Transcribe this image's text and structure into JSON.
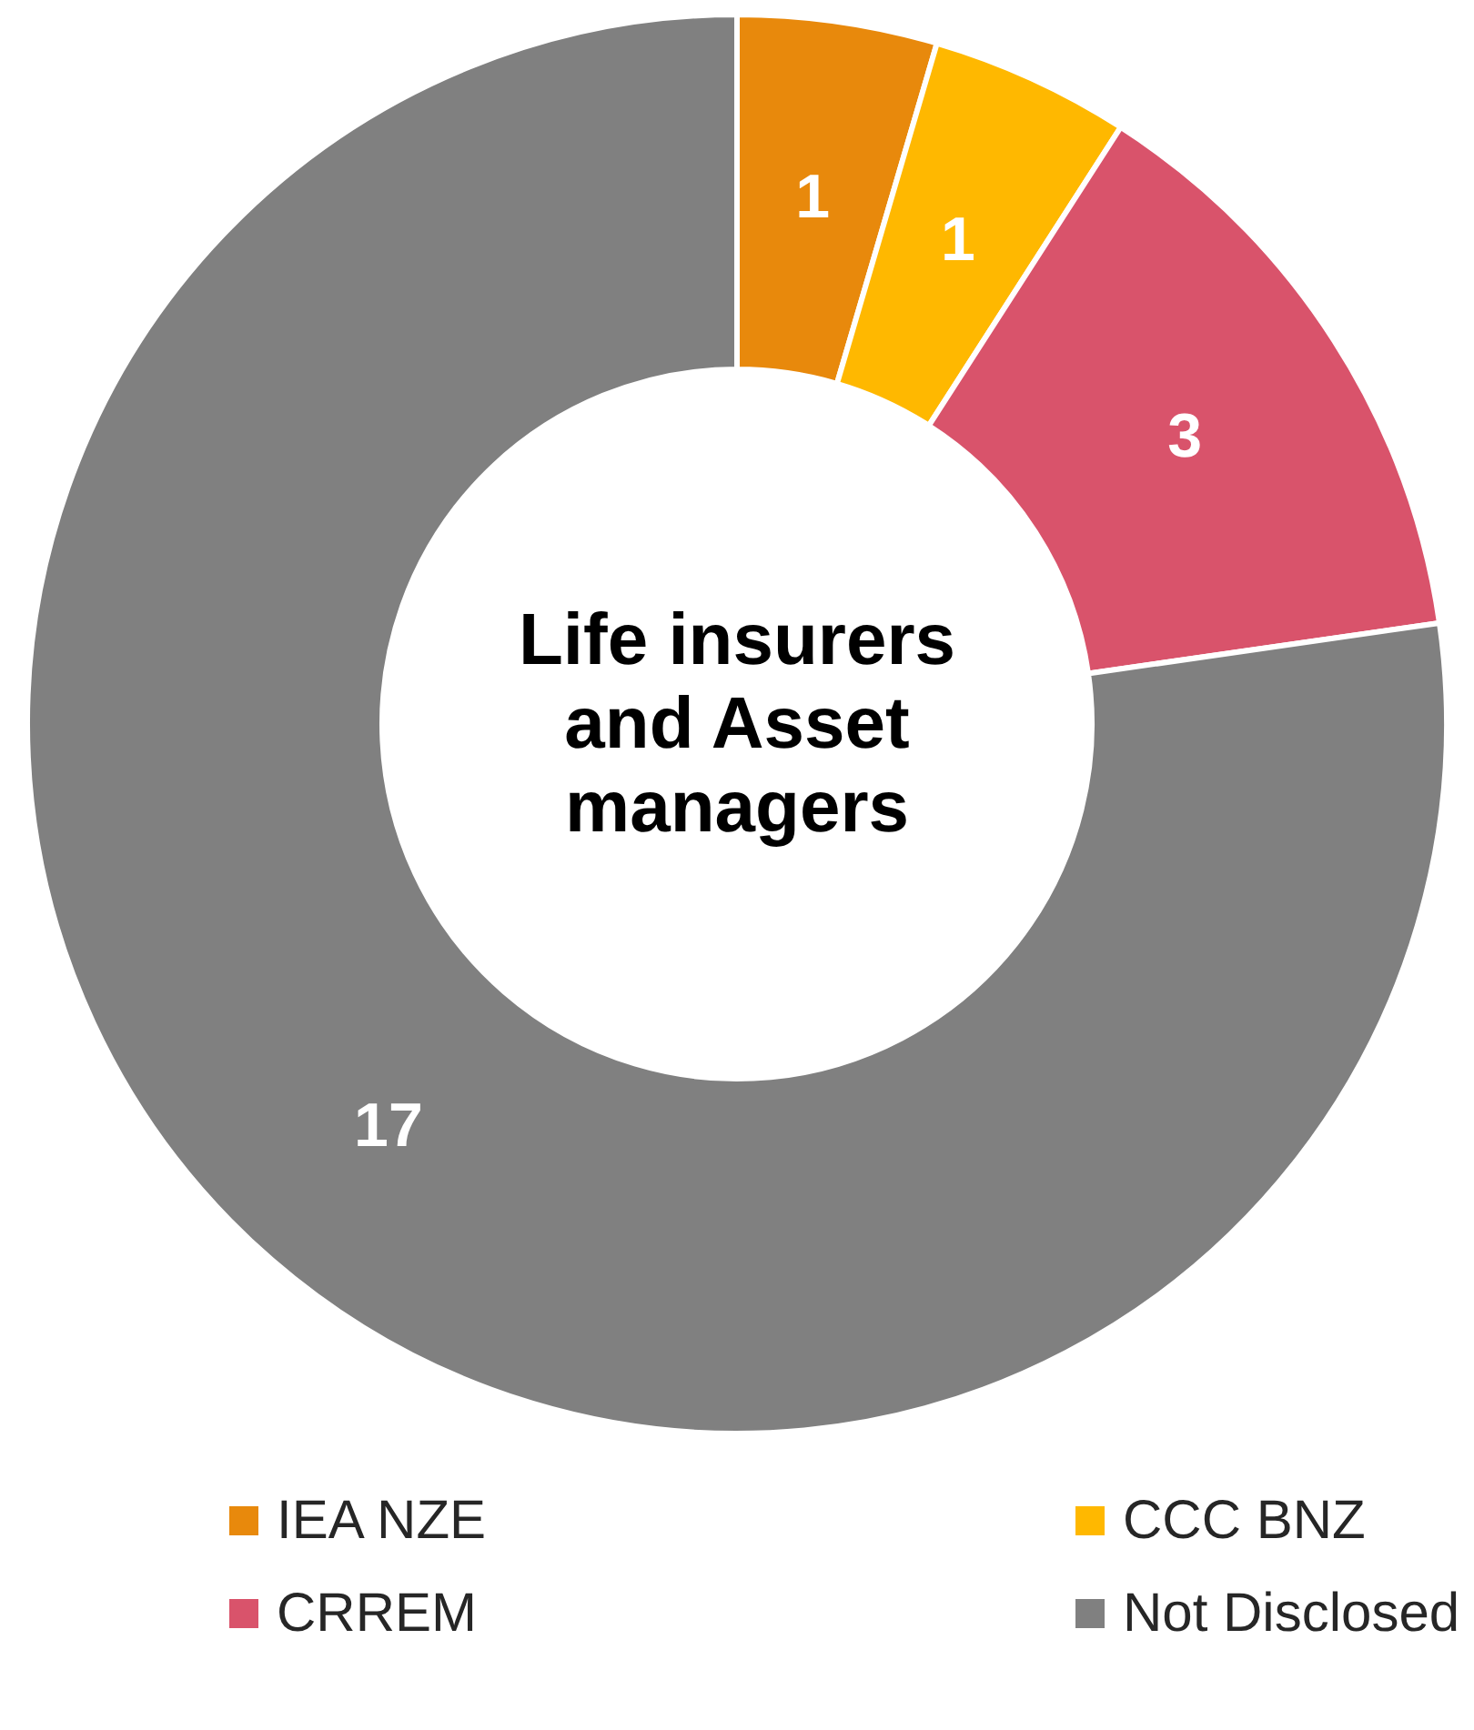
{
  "chart_data": {
    "type": "donut",
    "title": "Life insurers and Asset managers",
    "categories": [
      "IEA NZE",
      "CCC BNZ",
      "CRREM",
      "Not Disclosed"
    ],
    "values": [
      1,
      1,
      3,
      17
    ],
    "colors": [
      "#e8890c",
      "#ffb800",
      "#d9536b",
      "#808080"
    ],
    "data_labels": true,
    "legend": "bottom"
  }
}
